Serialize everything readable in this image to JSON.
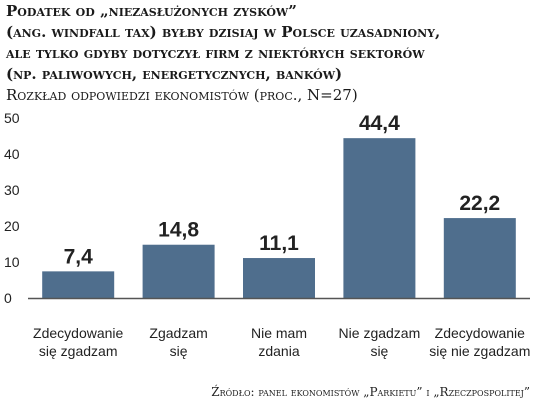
{
  "title_lines": [
    "Podatek od „niezasłużonych zysków”",
    "(ang. windfall tax) byłby dzisiaj w Polsce uzasadniony,",
    "ale tylko gdyby dotyczył firm z niektórych sektorów",
    "(np. paliwowych, energetycznych, banków)"
  ],
  "subtitle": "Rozkład odpowiedzi ekonomistów (proc., N=27)",
  "source": "Źródło: panel ekonomistów „Parkietu” i „Rzeczpospolitej”",
  "colors": {
    "bar": "#4f6e8d",
    "axis": "#555555"
  },
  "chart_data": {
    "type": "bar",
    "categories": [
      [
        "Zdecydowanie",
        "się zgadzam"
      ],
      [
        "Zgadzam",
        "się"
      ],
      [
        "Nie mam",
        "zdania"
      ],
      [
        "Nie zgadzam",
        "się"
      ],
      [
        "Zdecydowanie",
        "się nie zgadzam"
      ]
    ],
    "values": [
      7.4,
      14.8,
      11.1,
      44.4,
      22.2
    ],
    "value_labels": [
      "7,4",
      "14,8",
      "11,1",
      "44,4",
      "22,2"
    ],
    "ylim": [
      0,
      50
    ],
    "yticks": [
      0,
      10,
      20,
      30,
      40,
      50
    ],
    "grid": false,
    "legend": false
  }
}
